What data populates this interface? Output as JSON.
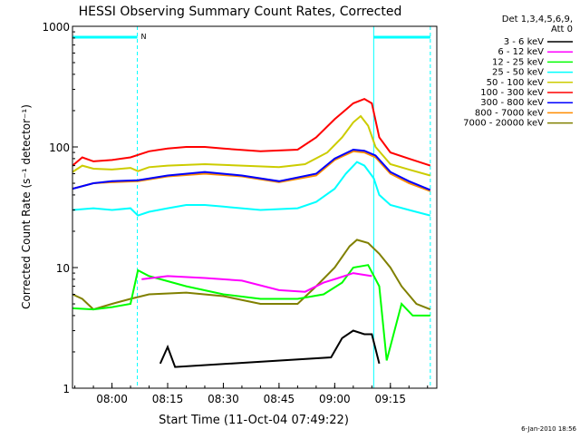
{
  "chart_data": {
    "type": "line",
    "title": "HESSI Observing Summary Count Rates, Corrected",
    "xlabel": "Start Time (11-Oct-04 07:49:22)",
    "ylabel": "Corrected Count Rate (s⁻¹ detector⁻¹)",
    "y_scale": "log",
    "ylim": [
      1,
      1000
    ],
    "xlim": [
      "07:49:22",
      "09:27:30"
    ],
    "x_tick_labels": [
      "08:00",
      "08:15",
      "08:30",
      "08:45",
      "09:00",
      "09:15"
    ],
    "y_tick_labels": [
      "1",
      "10",
      "100",
      "1000"
    ],
    "legend_title": [
      "Det 1,3,4,5,6,9,",
      "Att 0"
    ],
    "legend_position": "right",
    "grid": false,
    "footer": "6-Jan-2010 18:56",
    "night_marker": "N",
    "markers": {
      "vertical_lines_solid": [
        "07:49:22",
        "09:10:30"
      ],
      "vertical_lines_dashed": [
        "08:06:50",
        "09:25:45"
      ],
      "bars_at_top": [
        {
          "start": "07:49:22",
          "end": "08:06:50"
        },
        {
          "start": "09:10:30",
          "end": "09:25:45"
        }
      ]
    },
    "series": [
      {
        "name": "3 - 6 keV",
        "color": "#000000",
        "points": [
          [
            "08:13:00",
            1.6
          ],
          [
            "08:15:00",
            2.2
          ],
          [
            "08:17:00",
            1.5
          ],
          [
            "08:59:00",
            1.8
          ],
          [
            "09:02:00",
            2.6
          ],
          [
            "09:05:00",
            3.0
          ],
          [
            "09:08:00",
            2.8
          ],
          [
            "09:10:00",
            2.8
          ],
          [
            "09:12:00",
            1.6
          ]
        ]
      },
      {
        "name": "6 - 12 keV",
        "color": "#ff00ff",
        "points": [
          [
            "08:08:00",
            8.0
          ],
          [
            "08:15:00",
            8.5
          ],
          [
            "08:25:00",
            8.2
          ],
          [
            "08:35:00",
            7.8
          ],
          [
            "08:45:00",
            6.5
          ],
          [
            "08:52:00",
            6.3
          ],
          [
            "08:57:00",
            7.5
          ],
          [
            "09:01:00",
            8.2
          ],
          [
            "09:05:00",
            9.0
          ],
          [
            "09:10:00",
            8.5
          ]
        ]
      },
      {
        "name": "12 - 25 keV",
        "color": "#00ff00",
        "points": [
          [
            "07:49:22",
            4.6
          ],
          [
            "07:55:00",
            4.5
          ],
          [
            "08:00:00",
            4.7
          ],
          [
            "08:05:00",
            5.0
          ],
          [
            "08:07:00",
            9.5
          ],
          [
            "08:10:00",
            8.5
          ],
          [
            "08:20:00",
            7.0
          ],
          [
            "08:30:00",
            6.0
          ],
          [
            "08:40:00",
            5.5
          ],
          [
            "08:50:00",
            5.5
          ],
          [
            "08:57:00",
            6.0
          ],
          [
            "09:02:00",
            7.5
          ],
          [
            "09:05:00",
            10.0
          ],
          [
            "09:09:00",
            10.5
          ],
          [
            "09:12:00",
            7.0
          ],
          [
            "09:14:00",
            1.7
          ],
          [
            "09:18:00",
            5.0
          ],
          [
            "09:21:00",
            4.0
          ],
          [
            "09:25:45",
            4.0
          ]
        ]
      },
      {
        "name": "25 - 50 keV",
        "color": "#00ffff",
        "points": [
          [
            "07:49:22",
            30
          ],
          [
            "07:55:00",
            31
          ],
          [
            "08:00:00",
            30
          ],
          [
            "08:05:00",
            31
          ],
          [
            "08:07:00",
            27
          ],
          [
            "08:10:00",
            29
          ],
          [
            "08:15:00",
            31
          ],
          [
            "08:20:00",
            33
          ],
          [
            "08:25:00",
            33
          ],
          [
            "08:30:00",
            32
          ],
          [
            "08:40:00",
            30
          ],
          [
            "08:50:00",
            31
          ],
          [
            "08:55:00",
            35
          ],
          [
            "09:00:00",
            45
          ],
          [
            "09:03:00",
            60
          ],
          [
            "09:06:00",
            75
          ],
          [
            "09:08:00",
            70
          ],
          [
            "09:10:30",
            55
          ],
          [
            "09:12:00",
            40
          ],
          [
            "09:15:00",
            33
          ],
          [
            "09:20:00",
            30
          ],
          [
            "09:25:45",
            27
          ]
        ]
      },
      {
        "name": "50 - 100 keV",
        "color": "#cccc00",
        "points": [
          [
            "07:49:22",
            62
          ],
          [
            "07:52:00",
            70
          ],
          [
            "07:55:00",
            66
          ],
          [
            "08:00:00",
            65
          ],
          [
            "08:05:00",
            67
          ],
          [
            "08:07:00",
            63
          ],
          [
            "08:10:00",
            68
          ],
          [
            "08:15:00",
            70
          ],
          [
            "08:25:00",
            72
          ],
          [
            "08:35:00",
            70
          ],
          [
            "08:45:00",
            68
          ],
          [
            "08:52:00",
            72
          ],
          [
            "08:58:00",
            90
          ],
          [
            "09:02:00",
            120
          ],
          [
            "09:05:00",
            160
          ],
          [
            "09:07:00",
            180
          ],
          [
            "09:09:00",
            150
          ],
          [
            "09:11:00",
            100
          ],
          [
            "09:15:00",
            72
          ],
          [
            "09:20:00",
            65
          ],
          [
            "09:25:45",
            58
          ]
        ]
      },
      {
        "name": "100 - 300 keV",
        "color": "#ff0000",
        "points": [
          [
            "07:49:22",
            70
          ],
          [
            "07:52:00",
            82
          ],
          [
            "07:55:00",
            76
          ],
          [
            "08:00:00",
            78
          ],
          [
            "08:05:00",
            82
          ],
          [
            "08:10:00",
            92
          ],
          [
            "08:15:00",
            97
          ],
          [
            "08:20:00",
            100
          ],
          [
            "08:25:00",
            100
          ],
          [
            "08:30:00",
            97
          ],
          [
            "08:40:00",
            92
          ],
          [
            "08:50:00",
            95
          ],
          [
            "08:55:00",
            120
          ],
          [
            "09:00:00",
            170
          ],
          [
            "09:05:00",
            230
          ],
          [
            "09:08:00",
            250
          ],
          [
            "09:10:00",
            230
          ],
          [
            "09:12:00",
            120
          ],
          [
            "09:15:00",
            90
          ],
          [
            "09:20:00",
            80
          ],
          [
            "09:25:45",
            70
          ]
        ]
      },
      {
        "name": "300 - 800 keV",
        "color": "#0000ff",
        "points": [
          [
            "07:49:22",
            45
          ],
          [
            "07:55:00",
            50
          ],
          [
            "08:00:00",
            52
          ],
          [
            "08:07:00",
            53
          ],
          [
            "08:15:00",
            58
          ],
          [
            "08:25:00",
            62
          ],
          [
            "08:35:00",
            58
          ],
          [
            "08:45:00",
            52
          ],
          [
            "08:55:00",
            60
          ],
          [
            "09:00:00",
            80
          ],
          [
            "09:05:00",
            95
          ],
          [
            "09:08:00",
            93
          ],
          [
            "09:11:00",
            85
          ],
          [
            "09:15:00",
            62
          ],
          [
            "09:20:00",
            52
          ],
          [
            "09:25:45",
            44
          ]
        ]
      },
      {
        "name": "800 - 7000 keV",
        "color": "#ff8c00",
        "points": [
          [
            "07:49:22",
            45
          ],
          [
            "07:55:00",
            50
          ],
          [
            "08:00:00",
            51
          ],
          [
            "08:07:00",
            52
          ],
          [
            "08:15:00",
            57
          ],
          [
            "08:25:00",
            60
          ],
          [
            "08:35:00",
            57
          ],
          [
            "08:45:00",
            51
          ],
          [
            "08:55:00",
            58
          ],
          [
            "09:00:00",
            78
          ],
          [
            "09:05:00",
            92
          ],
          [
            "09:08:00",
            90
          ],
          [
            "09:11:00",
            82
          ],
          [
            "09:15:00",
            60
          ],
          [
            "09:20:00",
            50
          ],
          [
            "09:25:45",
            43
          ]
        ]
      },
      {
        "name": "7000 - 20000 keV",
        "color": "#808000",
        "points": [
          [
            "07:49:22",
            6.0
          ],
          [
            "07:52:00",
            5.5
          ],
          [
            "07:55:00",
            4.5
          ],
          [
            "08:00:00",
            5.0
          ],
          [
            "08:05:00",
            5.5
          ],
          [
            "08:10:00",
            6.0
          ],
          [
            "08:20:00",
            6.2
          ],
          [
            "08:30:00",
            5.8
          ],
          [
            "08:40:00",
            5.0
          ],
          [
            "08:50:00",
            5.0
          ],
          [
            "08:55:00",
            7.0
          ],
          [
            "09:00:00",
            10.0
          ],
          [
            "09:04:00",
            15.0
          ],
          [
            "09:06:00",
            17.0
          ],
          [
            "09:09:00",
            16.0
          ],
          [
            "09:12:00",
            13.0
          ],
          [
            "09:15:00",
            10.0
          ],
          [
            "09:18:00",
            7.0
          ],
          [
            "09:22:00",
            5.0
          ],
          [
            "09:25:45",
            4.5
          ]
        ]
      }
    ]
  }
}
